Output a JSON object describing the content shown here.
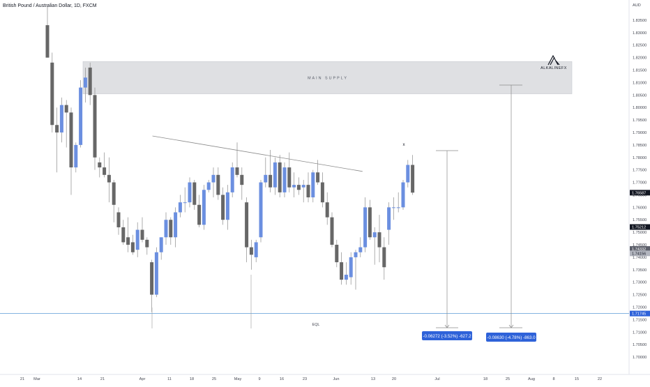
{
  "header": {
    "title": "British Pound / Australian Dollar, 1D, FXCM"
  },
  "price_axis": {
    "currency": "AUD",
    "labels": [
      "1.83500",
      "1.83000",
      "1.82500",
      "1.82000",
      "1.81500",
      "1.81000",
      "1.80500",
      "1.80000",
      "1.79500",
      "1.79000",
      "1.78500",
      "1.78000",
      "1.77500",
      "1.77000",
      "1.76500",
      "1.76000",
      "1.75500",
      "1.75000",
      "1.74500",
      "1.74000",
      "1.73500",
      "1.73000",
      "1.72500",
      "1.72000",
      "1.71500",
      "1.71000",
      "1.70500",
      "1.70000"
    ],
    "tags": [
      {
        "value": "1.76587",
        "style": "dark"
      },
      {
        "value": "1.75212",
        "style": "dark"
      },
      {
        "value": "1.74332",
        "style": "gray"
      },
      {
        "value": "1.74156",
        "style": "light"
      },
      {
        "value": "1.71745",
        "style": "blue"
      }
    ]
  },
  "time_axis": {
    "labels": [
      "21",
      "Mar",
      "14",
      "21",
      "Apr",
      "11",
      "18",
      "25",
      "May",
      "9",
      "16",
      "23",
      "Jun",
      "13",
      "20",
      "Jul",
      "18",
      "25",
      "Aug",
      "8",
      "15",
      "22"
    ]
  },
  "annotations": {
    "supply_zone_label": "MAIN SUPPLY",
    "logo_text": "ALKALINEFX",
    "eql_label": "EQL",
    "x_marker": "x",
    "measure_1": "-0.06272 (-3.52%) -627.2",
    "measure_2": "-0.08630 (-4.78%) -863.0"
  },
  "colors": {
    "bull": "#6b8fe0",
    "bear": "#676767",
    "zone_fill": "#dfe0e3",
    "eql_line": "#5b9bd5",
    "trendline": "#8a8a8a",
    "measure_label": "#2e62d9"
  },
  "chart_data": {
    "type": "candlestick",
    "symbol": "British Pound / Australian Dollar",
    "timeframe": "1D",
    "source": "FXCM",
    "ylim": [
      1.6975,
      1.8375
    ],
    "supply_zone": [
      1.80549,
      1.81844
    ],
    "equal_lows_level": 1.71745,
    "trendline": {
      "start": [
        22,
        1.7886
      ],
      "end": [
        66,
        1.7744
      ]
    },
    "candles": [
      {
        "o": 1.833,
        "h": 1.841,
        "l": 1.82,
        "c": 1.82
      },
      {
        "o": 1.818,
        "h": 1.822,
        "l": 1.79,
        "c": 1.793
      },
      {
        "o": 1.793,
        "h": 1.8,
        "l": 1.774,
        "c": 1.79
      },
      {
        "o": 1.79,
        "h": 1.804,
        "l": 1.786,
        "c": 1.801
      },
      {
        "o": 1.801,
        "h": 1.803,
        "l": 1.784,
        "c": 1.798
      },
      {
        "o": 1.798,
        "h": 1.8,
        "l": 1.765,
        "c": 1.776
      },
      {
        "o": 1.776,
        "h": 1.786,
        "l": 1.774,
        "c": 1.785
      },
      {
        "o": 1.785,
        "h": 1.811,
        "l": 1.784,
        "c": 1.808
      },
      {
        "o": 1.808,
        "h": 1.816,
        "l": 1.802,
        "c": 1.812
      },
      {
        "o": 1.816,
        "h": 1.818,
        "l": 1.801,
        "c": 1.805
      },
      {
        "o": 1.805,
        "h": 1.808,
        "l": 1.775,
        "c": 1.78
      },
      {
        "o": 1.778,
        "h": 1.78,
        "l": 1.772,
        "c": 1.776
      },
      {
        "o": 1.776,
        "h": 1.782,
        "l": 1.772,
        "c": 1.773
      },
      {
        "o": 1.773,
        "h": 1.78,
        "l": 1.762,
        "c": 1.77
      },
      {
        "o": 1.77,
        "h": 1.771,
        "l": 1.754,
        "c": 1.761
      },
      {
        "o": 1.758,
        "h": 1.76,
        "l": 1.749,
        "c": 1.752
      },
      {
        "o": 1.752,
        "h": 1.755,
        "l": 1.745,
        "c": 1.746
      },
      {
        "o": 1.748,
        "h": 1.756,
        "l": 1.742,
        "c": 1.745
      },
      {
        "o": 1.746,
        "h": 1.749,
        "l": 1.741,
        "c": 1.742
      },
      {
        "o": 1.743,
        "h": 1.754,
        "l": 1.74,
        "c": 1.751
      },
      {
        "o": 1.751,
        "h": 1.756,
        "l": 1.746,
        "c": 1.747
      },
      {
        "o": 1.747,
        "h": 1.748,
        "l": 1.741,
        "c": 1.744
      },
      {
        "o": 1.738,
        "h": 1.739,
        "l": 1.718,
        "c": 1.725
      },
      {
        "o": 1.725,
        "h": 1.744,
        "l": 1.724,
        "c": 1.742
      },
      {
        "o": 1.742,
        "h": 1.748,
        "l": 1.739,
        "c": 1.748
      },
      {
        "o": 1.748,
        "h": 1.758,
        "l": 1.745,
        "c": 1.755
      },
      {
        "o": 1.755,
        "h": 1.756,
        "l": 1.745,
        "c": 1.748
      },
      {
        "o": 1.748,
        "h": 1.76,
        "l": 1.744,
        "c": 1.758
      },
      {
        "o": 1.758,
        "h": 1.765,
        "l": 1.756,
        "c": 1.762
      },
      {
        "o": 1.762,
        "h": 1.768,
        "l": 1.758,
        "c": 1.762
      },
      {
        "o": 1.762,
        "h": 1.772,
        "l": 1.76,
        "c": 1.77
      },
      {
        "o": 1.77,
        "h": 1.771,
        "l": 1.759,
        "c": 1.761
      },
      {
        "o": 1.761,
        "h": 1.765,
        "l": 1.752,
        "c": 1.753
      },
      {
        "o": 1.753,
        "h": 1.769,
        "l": 1.751,
        "c": 1.767
      },
      {
        "o": 1.767,
        "h": 1.771,
        "l": 1.766,
        "c": 1.77
      },
      {
        "o": 1.77,
        "h": 1.776,
        "l": 1.764,
        "c": 1.773
      },
      {
        "o": 1.773,
        "h": 1.776,
        "l": 1.763,
        "c": 1.765
      },
      {
        "o": 1.765,
        "h": 1.768,
        "l": 1.753,
        "c": 1.755
      },
      {
        "o": 1.755,
        "h": 1.769,
        "l": 1.751,
        "c": 1.766
      },
      {
        "o": 1.766,
        "h": 1.778,
        "l": 1.764,
        "c": 1.776
      },
      {
        "o": 1.776,
        "h": 1.786,
        "l": 1.772,
        "c": 1.773
      },
      {
        "o": 1.773,
        "h": 1.776,
        "l": 1.763,
        "c": 1.769
      },
      {
        "o": 1.762,
        "h": 1.764,
        "l": 1.738,
        "c": 1.744
      },
      {
        "o": 1.744,
        "h": 1.747,
        "l": 1.735,
        "c": 1.741
      },
      {
        "o": 1.74,
        "h": 1.747,
        "l": 1.738,
        "c": 1.746
      },
      {
        "o": 1.748,
        "h": 1.771,
        "l": 1.746,
        "c": 1.77
      },
      {
        "o": 1.77,
        "h": 1.78,
        "l": 1.768,
        "c": 1.773
      },
      {
        "o": 1.773,
        "h": 1.783,
        "l": 1.766,
        "c": 1.768
      },
      {
        "o": 1.768,
        "h": 1.78,
        "l": 1.765,
        "c": 1.778
      },
      {
        "o": 1.778,
        "h": 1.781,
        "l": 1.764,
        "c": 1.766
      },
      {
        "o": 1.766,
        "h": 1.778,
        "l": 1.764,
        "c": 1.776
      },
      {
        "o": 1.776,
        "h": 1.782,
        "l": 1.766,
        "c": 1.768
      },
      {
        "o": 1.768,
        "h": 1.774,
        "l": 1.764,
        "c": 1.769
      },
      {
        "o": 1.769,
        "h": 1.772,
        "l": 1.765,
        "c": 1.767
      },
      {
        "o": 1.768,
        "h": 1.771,
        "l": 1.762,
        "c": 1.769
      },
      {
        "o": 1.769,
        "h": 1.774,
        "l": 1.762,
        "c": 1.764
      },
      {
        "o": 1.764,
        "h": 1.775,
        "l": 1.762,
        "c": 1.774
      },
      {
        "o": 1.774,
        "h": 1.779,
        "l": 1.769,
        "c": 1.77
      },
      {
        "o": 1.77,
        "h": 1.774,
        "l": 1.76,
        "c": 1.762
      },
      {
        "o": 1.762,
        "h": 1.766,
        "l": 1.753,
        "c": 1.756
      },
      {
        "o": 1.756,
        "h": 1.758,
        "l": 1.744,
        "c": 1.745
      },
      {
        "o": 1.745,
        "h": 1.747,
        "l": 1.736,
        "c": 1.738
      },
      {
        "o": 1.738,
        "h": 1.742,
        "l": 1.729,
        "c": 1.731
      },
      {
        "o": 1.731,
        "h": 1.738,
        "l": 1.729,
        "c": 1.733
      },
      {
        "o": 1.732,
        "h": 1.742,
        "l": 1.729,
        "c": 1.74
      },
      {
        "o": 1.74,
        "h": 1.743,
        "l": 1.727,
        "c": 1.742
      },
      {
        "o": 1.742,
        "h": 1.748,
        "l": 1.74,
        "c": 1.744
      },
      {
        "o": 1.744,
        "h": 1.764,
        "l": 1.742,
        "c": 1.76
      },
      {
        "o": 1.76,
        "h": 1.763,
        "l": 1.747,
        "c": 1.748
      },
      {
        "o": 1.748,
        "h": 1.752,
        "l": 1.737,
        "c": 1.75
      },
      {
        "o": 1.75,
        "h": 1.757,
        "l": 1.738,
        "c": 1.744
      },
      {
        "o": 1.744,
        "h": 1.748,
        "l": 1.731,
        "c": 1.736
      },
      {
        "o": 1.751,
        "h": 1.762,
        "l": 1.745,
        "c": 1.76
      },
      {
        "o": 1.76,
        "h": 1.764,
        "l": 1.755,
        "c": 1.76
      },
      {
        "o": 1.76,
        "h": 1.766,
        "l": 1.758,
        "c": 1.76
      },
      {
        "o": 1.76,
        "h": 1.771,
        "l": 1.759,
        "c": 1.77
      },
      {
        "o": 1.77,
        "h": 1.779,
        "l": 1.768,
        "c": 1.777
      },
      {
        "o": 1.777,
        "h": 1.781,
        "l": 1.765,
        "c": 1.7659
      }
    ]
  }
}
